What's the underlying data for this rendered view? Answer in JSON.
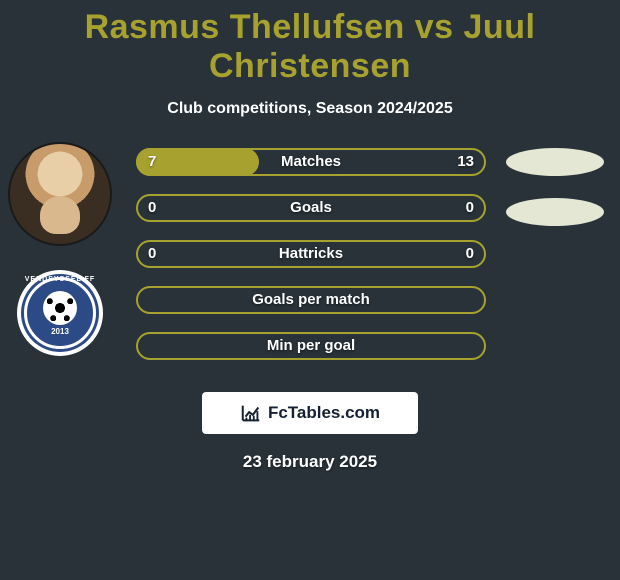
{
  "title": "Rasmus Thellufsen vs Juul Christensen",
  "subtitle": "Club competitions, Season 2024/2025",
  "colors": {
    "accent": "#a7a22f",
    "background": "#283238",
    "ellipse": "#e4e7d4",
    "text": "#ffffff"
  },
  "bars": [
    {
      "label": "Matches",
      "left": "7",
      "right": "13",
      "fill_pct": 35
    },
    {
      "label": "Goals",
      "left": "0",
      "right": "0",
      "fill_pct": 0
    },
    {
      "label": "Hattricks",
      "left": "0",
      "right": "0",
      "fill_pct": 0
    },
    {
      "label": "Goals per match",
      "left": "",
      "right": "",
      "fill_pct": 0
    },
    {
      "label": "Min per goal",
      "left": "",
      "right": "",
      "fill_pct": 0
    }
  ],
  "club_badge": {
    "outer_text": "VENDSYSSEL FF",
    "year": "2013"
  },
  "watermark": "FcTables.com",
  "date": "23 february 2025"
}
